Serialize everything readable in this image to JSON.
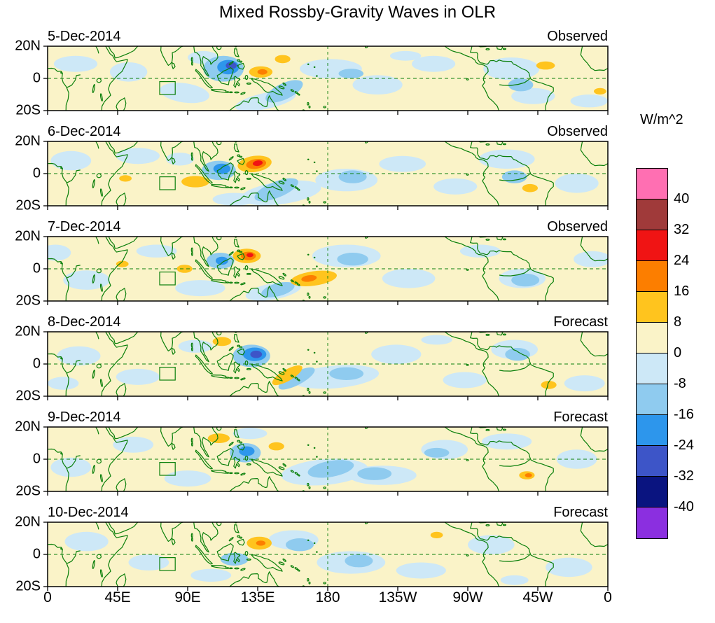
{
  "chart_data": {
    "type": "heatmap",
    "title": "Mixed Rossby-Gravity Waves in OLR",
    "units": "W/m^2",
    "lon_ticks": [
      "0",
      "45E",
      "90E",
      "135E",
      "180",
      "135W",
      "90W",
      "45W",
      "0"
    ],
    "lat_ticks": [
      "20N",
      "0",
      "20S"
    ],
    "lon_range_deg": [
      0,
      360
    ],
    "lat_range_deg": [
      -20,
      20
    ],
    "contour_levels": [
      -40,
      -32,
      -24,
      -16,
      -8,
      0,
      8,
      16,
      24,
      32,
      40
    ],
    "colorbar_tick_labels_top_to_bottom": [
      "40",
      "32",
      "24",
      "16",
      "8",
      "0",
      "-8",
      "-16",
      "-24",
      "-32",
      "-40"
    ],
    "palette_top_to_bottom": [
      "#FF6FB2",
      "#A03A3A",
      "#F01414",
      "#FC7E00",
      "#FFC41E",
      "#FAF3C8",
      "#CDE8F7",
      "#8FCBEF",
      "#2D96EC",
      "#3D55C8",
      "#0A1480",
      "#8B2FE0"
    ],
    "panels": [
      {
        "date": "5-Dec-2014",
        "label": "Observed",
        "anomaly_blobs": [
          [
            18,
            9,
            14,
            5,
            0,
            6
          ],
          [
            52,
            4,
            12,
            6,
            0,
            6
          ],
          [
            88,
            -9,
            16,
            6,
            8,
            6
          ],
          [
            100,
            13,
            10,
            4,
            0,
            6
          ],
          [
            140,
            -14,
            20,
            5,
            -12,
            6
          ],
          [
            182,
            6,
            20,
            6,
            0,
            6
          ],
          [
            212,
            -4,
            16,
            6,
            0,
            6
          ],
          [
            248,
            9,
            14,
            5,
            0,
            6
          ],
          [
            298,
            6,
            18,
            7,
            0,
            6
          ],
          [
            312,
            -11,
            14,
            5,
            0,
            6
          ],
          [
            348,
            -14,
            12,
            4,
            0,
            6
          ],
          [
            230,
            14,
            10,
            3,
            0,
            6
          ],
          [
            113,
            6,
            13,
            8,
            0,
            7
          ],
          [
            152,
            -8,
            13,
            5,
            -25,
            7
          ],
          [
            304,
            -4,
            8,
            4,
            0,
            7
          ],
          [
            195,
            3,
            8,
            3,
            0,
            7
          ],
          [
            116,
            7,
            7,
            4.5,
            0,
            8
          ],
          [
            118,
            8,
            3.5,
            2.2,
            0,
            9
          ],
          [
            137,
            4,
            7.5,
            3.5,
            0,
            4
          ],
          [
            151,
            12,
            5,
            2.5,
            0,
            4
          ],
          [
            320,
            8,
            6,
            2.5,
            0,
            4
          ],
          [
            355,
            -8,
            4,
            2,
            0,
            4
          ],
          [
            138,
            4,
            3.2,
            1.7,
            0,
            3
          ]
        ]
      },
      {
        "date": "6-Dec-2014",
        "label": "Observed",
        "anomaly_blobs": [
          [
            15,
            8,
            13,
            6,
            0,
            6
          ],
          [
            58,
            11,
            14,
            5,
            0,
            6
          ],
          [
            85,
            9,
            9,
            4,
            0,
            6
          ],
          [
            150,
            -12,
            26,
            7,
            -8,
            6
          ],
          [
            192,
            -4,
            20,
            7,
            0,
            6
          ],
          [
            228,
            6,
            15,
            5,
            0,
            6
          ],
          [
            262,
            -8,
            14,
            5,
            0,
            6
          ],
          [
            295,
            9,
            18,
            6,
            0,
            6
          ],
          [
            340,
            -6,
            14,
            6,
            0,
            6
          ],
          [
            120,
            -16,
            14,
            4,
            0,
            6
          ],
          [
            110,
            2,
            11,
            6,
            0,
            7
          ],
          [
            147,
            -10,
            15,
            5,
            -22,
            7
          ],
          [
            196,
            -2,
            9,
            4,
            0,
            7
          ],
          [
            300,
            -2,
            8,
            4,
            0,
            7
          ],
          [
            112,
            3,
            5.5,
            3.2,
            0,
            8
          ],
          [
            133,
            6,
            11,
            5,
            -8,
            4
          ],
          [
            95,
            -5,
            9,
            3.5,
            0,
            4
          ],
          [
            310,
            -9,
            5,
            2.5,
            0,
            4
          ],
          [
            50,
            -3,
            4,
            2,
            0,
            4
          ],
          [
            134,
            6,
            6.5,
            3,
            -8,
            3
          ],
          [
            135,
            6.5,
            3.2,
            1.7,
            -8,
            2
          ]
        ]
      },
      {
        "date": "7-Dec-2014",
        "label": "Observed",
        "anomaly_blobs": [
          [
            25,
            -7,
            15,
            6,
            0,
            6
          ],
          [
            70,
            11,
            13,
            4,
            0,
            6
          ],
          [
            98,
            -12,
            16,
            5,
            0,
            6
          ],
          [
            145,
            -14,
            18,
            5,
            -10,
            6
          ],
          [
            192,
            8,
            22,
            7,
            0,
            6
          ],
          [
            232,
            -6,
            17,
            6,
            0,
            6
          ],
          [
            278,
            11,
            13,
            4,
            0,
            6
          ],
          [
            305,
            -6,
            15,
            6,
            0,
            6
          ],
          [
            350,
            6,
            12,
            5,
            0,
            6
          ],
          [
            5,
            10,
            10,
            5,
            0,
            6
          ],
          [
            111,
            5,
            9,
            5,
            0,
            7
          ],
          [
            196,
            6,
            10,
            4,
            0,
            7
          ],
          [
            307,
            -7,
            9,
            4,
            0,
            7
          ],
          [
            148,
            -13,
            11,
            4,
            -15,
            7
          ],
          [
            112,
            5,
            4,
            2.5,
            0,
            8
          ],
          [
            128,
            8,
            9,
            4.5,
            0,
            4
          ],
          [
            171,
            -6,
            15,
            4.5,
            -8,
            4
          ],
          [
            88,
            0,
            5,
            2.5,
            0,
            4
          ],
          [
            48,
            3,
            4,
            2,
            0,
            4
          ],
          [
            129,
            8,
            4.8,
            2.6,
            0,
            3
          ],
          [
            168,
            -6,
            5,
            2,
            -8,
            3
          ],
          [
            130,
            8.5,
            2.2,
            1.3,
            0,
            2
          ]
        ]
      },
      {
        "date": "8-Dec-2014",
        "label": "Forecast",
        "anomaly_blobs": [
          [
            20,
            5,
            14,
            6,
            0,
            6
          ],
          [
            58,
            -8,
            14,
            5,
            0,
            6
          ],
          [
            95,
            11,
            11,
            4,
            0,
            6
          ],
          [
            185,
            -8,
            28,
            7,
            -5,
            6
          ],
          [
            224,
            6,
            16,
            6,
            0,
            6
          ],
          [
            268,
            -10,
            14,
            5,
            0,
            6
          ],
          [
            300,
            9,
            15,
            6,
            0,
            6
          ],
          [
            345,
            -12,
            13,
            5,
            0,
            6
          ],
          [
            250,
            15,
            10,
            3,
            0,
            6
          ],
          [
            10,
            -12,
            10,
            4,
            0,
            6
          ],
          [
            131,
            5,
            12,
            7,
            0,
            7
          ],
          [
            160,
            -9,
            13,
            4,
            -28,
            7
          ],
          [
            192,
            -6,
            11,
            4,
            0,
            7
          ],
          [
            302,
            6,
            8,
            4,
            0,
            7
          ],
          [
            133,
            6,
            7.5,
            4.2,
            0,
            8
          ],
          [
            134,
            6,
            3.8,
            2.3,
            0,
            9
          ],
          [
            154,
            -7,
            11,
            3.5,
            -30,
            4
          ],
          [
            112,
            14,
            6,
            2.8,
            0,
            4
          ],
          [
            322,
            -13,
            5,
            2.5,
            0,
            4
          ]
        ]
      },
      {
        "date": "9-Dec-2014",
        "label": "Forecast",
        "anomaly_blobs": [
          [
            15,
            -5,
            13,
            6,
            0,
            6
          ],
          [
            55,
            9,
            13,
            5,
            0,
            6
          ],
          [
            90,
            -12,
            15,
            5,
            0,
            6
          ],
          [
            130,
            16,
            11,
            3.5,
            0,
            6
          ],
          [
            178,
            -8,
            28,
            8,
            -5,
            6
          ],
          [
            215,
            -10,
            22,
            6,
            0,
            6
          ],
          [
            255,
            6,
            15,
            6,
            0,
            6
          ],
          [
            295,
            11,
            16,
            5,
            0,
            6
          ],
          [
            340,
            0,
            13,
            6,
            0,
            6
          ],
          [
            127,
            4,
            10,
            6,
            0,
            7
          ],
          [
            182,
            -6,
            15,
            5,
            -10,
            7
          ],
          [
            210,
            -9,
            11,
            4,
            0,
            7
          ],
          [
            250,
            4,
            8,
            3,
            0,
            7
          ],
          [
            128,
            5,
            5,
            3,
            0,
            8
          ],
          [
            110,
            13,
            7,
            3,
            0,
            4
          ],
          [
            308,
            -10,
            5,
            2.5,
            0,
            4
          ],
          [
            147,
            8,
            5,
            2.5,
            0,
            4
          ],
          [
            309,
            -10,
            2.3,
            1.3,
            0,
            3
          ]
        ]
      },
      {
        "date": "10-Dec-2014",
        "label": "Forecast",
        "anomaly_blobs": [
          [
            25,
            8,
            14,
            6,
            0,
            6
          ],
          [
            65,
            -5,
            13,
            5,
            0,
            6
          ],
          [
            105,
            -13,
            13,
            4,
            0,
            6
          ],
          [
            158,
            9,
            16,
            6,
            0,
            6
          ],
          [
            195,
            -5,
            22,
            7,
            0,
            6
          ],
          [
            240,
            -10,
            16,
            5,
            0,
            6
          ],
          [
            285,
            6,
            15,
            6,
            0,
            6
          ],
          [
            335,
            -8,
            15,
            6,
            0,
            6
          ],
          [
            300,
            -16,
            9,
            3,
            0,
            6
          ],
          [
            120,
            -3,
            9,
            4,
            0,
            7
          ],
          [
            162,
            6,
            9,
            4,
            0,
            7
          ],
          [
            200,
            -4,
            9,
            4,
            0,
            7
          ],
          [
            136,
            7,
            8,
            4,
            0,
            4
          ],
          [
            250,
            12,
            4,
            2,
            0,
            4
          ],
          [
            137,
            7,
            3,
            1.6,
            0,
            3
          ]
        ]
      }
    ]
  }
}
